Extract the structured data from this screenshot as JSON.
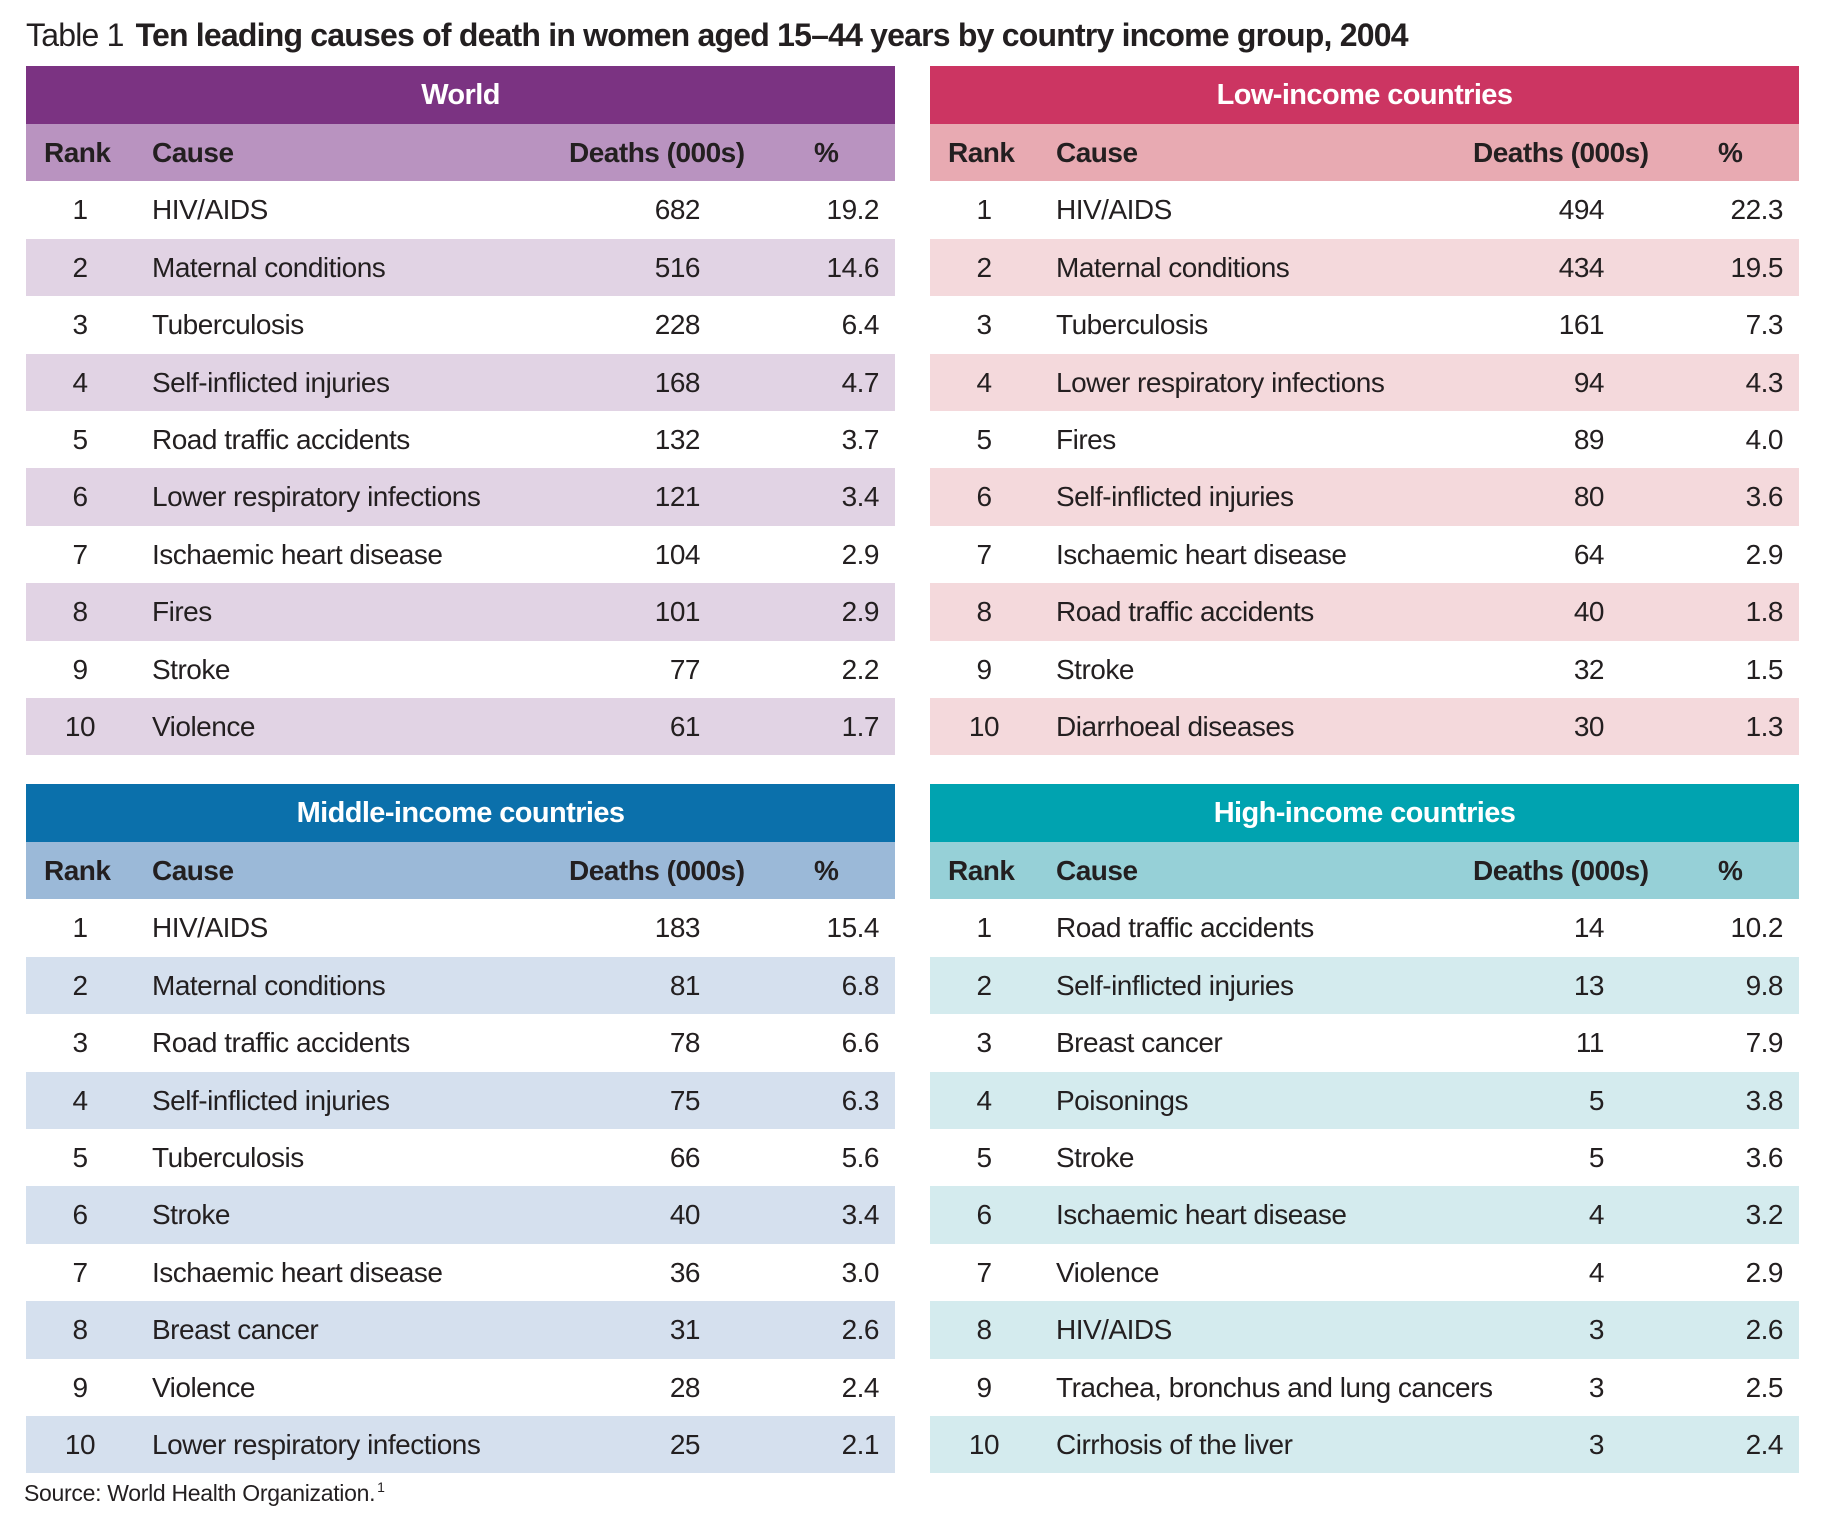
{
  "title": {
    "label": "Table 1",
    "text": "Ten leading causes of death in women aged 15–44 years by country income group, 2004"
  },
  "columns": {
    "rank": "Rank",
    "cause": "Cause",
    "deaths": "Deaths (000s)",
    "pct": "%"
  },
  "panels": [
    {
      "title": "World",
      "colors": {
        "header": "#7b3382",
        "subheader": "#b993c0",
        "stripe": "#e1d3e4"
      },
      "rows": [
        {
          "rank": "1",
          "cause": "HIV/AIDS",
          "deaths": "682",
          "pct": "19.2"
        },
        {
          "rank": "2",
          "cause": "Maternal conditions",
          "deaths": "516",
          "pct": "14.6"
        },
        {
          "rank": "3",
          "cause": "Tuberculosis",
          "deaths": "228",
          "pct": "6.4"
        },
        {
          "rank": "4",
          "cause": "Self-inflicted injuries",
          "deaths": "168",
          "pct": "4.7"
        },
        {
          "rank": "5",
          "cause": "Road traffic accidents",
          "deaths": "132",
          "pct": "3.7"
        },
        {
          "rank": "6",
          "cause": "Lower respiratory infections",
          "deaths": "121",
          "pct": "3.4"
        },
        {
          "rank": "7",
          "cause": "Ischaemic heart disease",
          "deaths": "104",
          "pct": "2.9"
        },
        {
          "rank": "8",
          "cause": "Fires",
          "deaths": "101",
          "pct": "2.9"
        },
        {
          "rank": "9",
          "cause": "Stroke",
          "deaths": "77",
          "pct": "2.2"
        },
        {
          "rank": "10",
          "cause": "Violence",
          "deaths": "61",
          "pct": "1.7"
        }
      ]
    },
    {
      "title": "Low-income countries",
      "colors": {
        "header": "#cc3562",
        "subheader": "#e8aab2",
        "stripe": "#f4d9dc"
      },
      "rows": [
        {
          "rank": "1",
          "cause": "HIV/AIDS",
          "deaths": "494",
          "pct": "22.3"
        },
        {
          "rank": "2",
          "cause": "Maternal conditions",
          "deaths": "434",
          "pct": "19.5"
        },
        {
          "rank": "3",
          "cause": "Tuberculosis",
          "deaths": "161",
          "pct": "7.3"
        },
        {
          "rank": "4",
          "cause": "Lower respiratory infections",
          "deaths": "94",
          "pct": "4.3"
        },
        {
          "rank": "5",
          "cause": "Fires",
          "deaths": "89",
          "pct": "4.0"
        },
        {
          "rank": "6",
          "cause": "Self-inflicted injuries",
          "deaths": "80",
          "pct": "3.6"
        },
        {
          "rank": "7",
          "cause": "Ischaemic heart disease",
          "deaths": "64",
          "pct": "2.9"
        },
        {
          "rank": "8",
          "cause": "Road traffic accidents",
          "deaths": "40",
          "pct": "1.8"
        },
        {
          "rank": "9",
          "cause": "Stroke",
          "deaths": "32",
          "pct": "1.5"
        },
        {
          "rank": "10",
          "cause": "Diarrhoeal diseases",
          "deaths": "30",
          "pct": "1.3"
        }
      ]
    },
    {
      "title": "Middle-income countries",
      "colors": {
        "header": "#0b70ab",
        "subheader": "#9bb9d8",
        "stripe": "#d5e0ee"
      },
      "rows": [
        {
          "rank": "1",
          "cause": "HIV/AIDS",
          "deaths": "183",
          "pct": "15.4"
        },
        {
          "rank": "2",
          "cause": "Maternal conditions",
          "deaths": "81",
          "pct": "6.8"
        },
        {
          "rank": "3",
          "cause": "Road traffic accidents",
          "deaths": "78",
          "pct": "6.6"
        },
        {
          "rank": "4",
          "cause": "Self-inflicted injuries",
          "deaths": "75",
          "pct": "6.3"
        },
        {
          "rank": "5",
          "cause": "Tuberculosis",
          "deaths": "66",
          "pct": "5.6"
        },
        {
          "rank": "6",
          "cause": "Stroke",
          "deaths": "40",
          "pct": "3.4"
        },
        {
          "rank": "7",
          "cause": "Ischaemic heart disease",
          "deaths": "36",
          "pct": "3.0"
        },
        {
          "rank": "8",
          "cause": "Breast cancer",
          "deaths": "31",
          "pct": "2.6"
        },
        {
          "rank": "9",
          "cause": "Violence",
          "deaths": "28",
          "pct": "2.4"
        },
        {
          "rank": "10",
          "cause": "Lower respiratory infections",
          "deaths": "25",
          "pct": "2.1"
        }
      ]
    },
    {
      "title": "High-income countries",
      "colors": {
        "header": "#00a3b0",
        "subheader": "#96d0d7",
        "stripe": "#d4ebee"
      },
      "rows": [
        {
          "rank": "1",
          "cause": "Road traffic accidents",
          "deaths": "14",
          "pct": "10.2"
        },
        {
          "rank": "2",
          "cause": "Self-inflicted injuries",
          "deaths": "13",
          "pct": "9.8"
        },
        {
          "rank": "3",
          "cause": "Breast cancer",
          "deaths": "11",
          "pct": "7.9"
        },
        {
          "rank": "4",
          "cause": "Poisonings",
          "deaths": "5",
          "pct": "3.8"
        },
        {
          "rank": "5",
          "cause": "Stroke",
          "deaths": "5",
          "pct": "3.6"
        },
        {
          "rank": "6",
          "cause": "Ischaemic heart disease",
          "deaths": "4",
          "pct": "3.2"
        },
        {
          "rank": "7",
          "cause": "Violence",
          "deaths": "4",
          "pct": "2.9"
        },
        {
          "rank": "8",
          "cause": "HIV/AIDS",
          "deaths": "3",
          "pct": "2.6"
        },
        {
          "rank": "9",
          "cause": "Trachea, bronchus and lung cancers",
          "deaths": "3",
          "pct": "2.5"
        },
        {
          "rank": "10",
          "cause": "Cirrhosis of the liver",
          "deaths": "3",
          "pct": "2.4"
        }
      ]
    }
  ],
  "source": {
    "text": "Source: World Health Organization.",
    "footnote": "1"
  }
}
